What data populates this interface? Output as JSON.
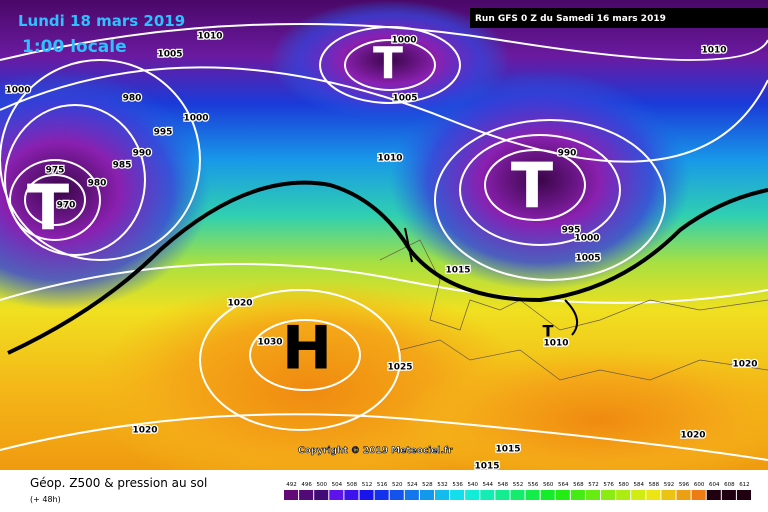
{
  "header": {
    "date": "Lundi 18 mars 2019",
    "time": "1:00 locale",
    "run": "Run GFS 0 Z du Samedi 16 mars 2019"
  },
  "map": {
    "isobar_labels": [
      1010,
      1005,
      1000,
      1000,
      1005,
      1010,
      980,
      995,
      1000,
      990,
      985,
      975,
      980,
      970,
      1010,
      990,
      995,
      1000,
      1005,
      1015,
      1020,
      1030,
      1025,
      1010,
      1020,
      1020,
      1020,
      1015,
      1015
    ],
    "centers": [
      "T",
      "T",
      "T",
      "H",
      "T"
    ],
    "copyright": "Copyright © 2019 Meteociel.fr"
  },
  "footer": {
    "title": "Géop. Z500 & pression au sol",
    "lead": "(+ 48h)"
  },
  "legend": {
    "values": [
      492,
      496,
      500,
      504,
      508,
      512,
      516,
      520,
      524,
      528,
      532,
      536,
      540,
      544,
      548,
      552,
      556,
      560,
      564,
      568,
      572,
      576,
      580,
      584,
      588,
      592,
      596,
      600,
      604,
      608,
      612
    ]
  }
}
